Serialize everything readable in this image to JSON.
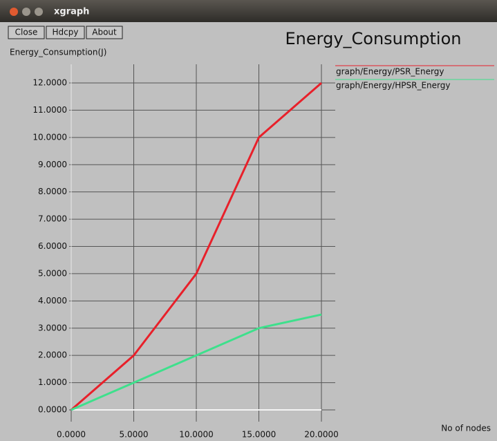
{
  "window": {
    "title": "xgraph",
    "buttons": [
      "Close",
      "Hdcpy",
      "About"
    ]
  },
  "chart_data": {
    "type": "line",
    "title": "Energy_Consumption",
    "y_label": "Energy_Consumption(J)",
    "x_label": "No of nodes",
    "x": [
      0,
      5,
      10,
      15,
      20
    ],
    "series": [
      {
        "name": "graph/Energy/PSR_Energy",
        "color": "#e8202a",
        "values": [
          0,
          2,
          5,
          10,
          12
        ]
      },
      {
        "name": "graph/Energy/HPSR_Energy",
        "color": "#3ee08c",
        "values": [
          0,
          1,
          2,
          3,
          3.5
        ]
      }
    ],
    "xlim": [
      0,
      20
    ],
    "xticks": [
      {
        "value": 0,
        "label": "0.0000"
      },
      {
        "value": 5,
        "label": "5.0000"
      },
      {
        "value": 10,
        "label": "10.0000"
      },
      {
        "value": 15,
        "label": "15.0000"
      },
      {
        "value": 20,
        "label": "20.0000"
      }
    ],
    "ylim": [
      0,
      12
    ],
    "yticks": [
      {
        "value": 0,
        "label": "0.0000"
      },
      {
        "value": 1,
        "label": "1.0000"
      },
      {
        "value": 2,
        "label": "2.0000"
      },
      {
        "value": 3,
        "label": "3.0000"
      },
      {
        "value": 4,
        "label": "4.0000"
      },
      {
        "value": 5,
        "label": "5.0000"
      },
      {
        "value": 6,
        "label": "6.0000"
      },
      {
        "value": 7,
        "label": "7.0000"
      },
      {
        "value": 8,
        "label": "8.0000"
      },
      {
        "value": 9,
        "label": "9.0000"
      },
      {
        "value": 10,
        "label": "10.0000"
      },
      {
        "value": 11,
        "label": "11.0000"
      },
      {
        "value": 12,
        "label": "12.0000"
      }
    ],
    "grid": true
  }
}
